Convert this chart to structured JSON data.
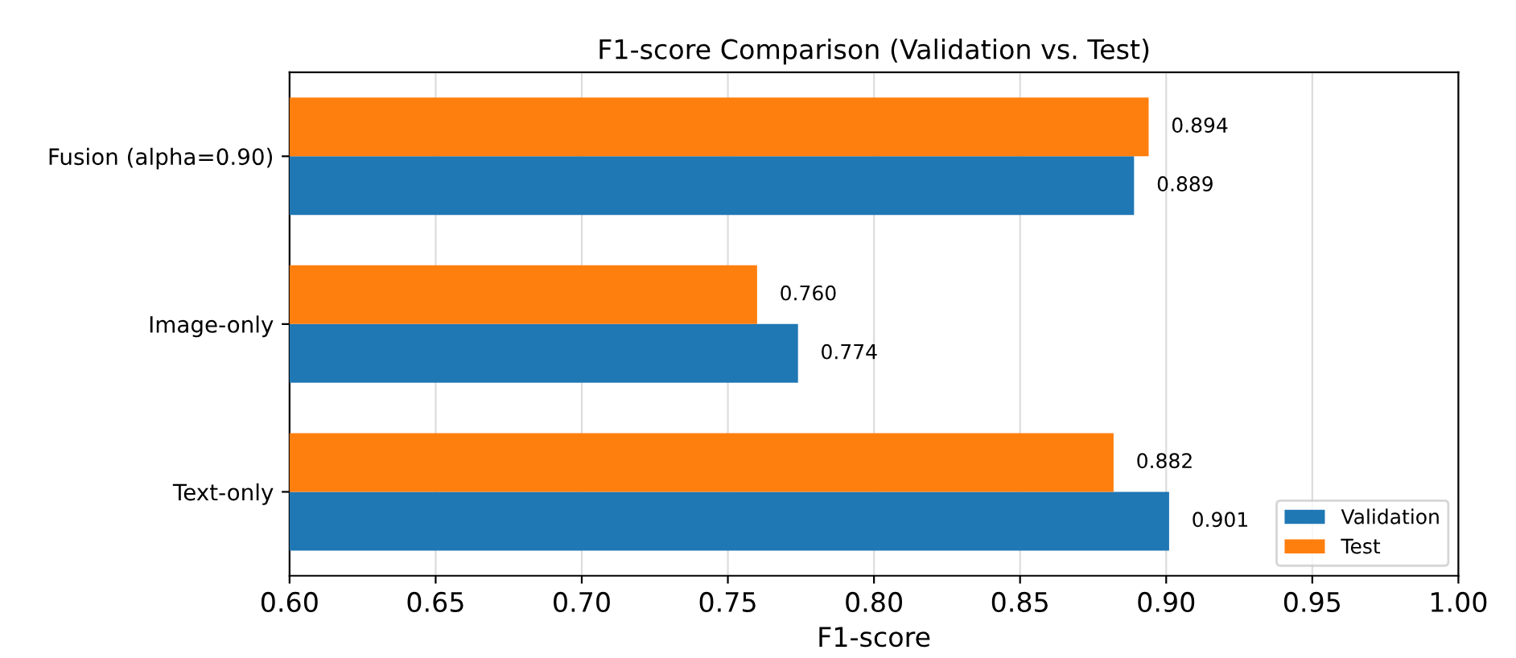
{
  "chart_data": {
    "type": "bar",
    "orientation": "horizontal",
    "title": "F1-score Comparison (Validation vs. Test)",
    "xlabel": "F1-score",
    "categories": [
      "Fusion (alpha=0.90)",
      "Image-only",
      "Text-only"
    ],
    "series": [
      {
        "name": "Validation",
        "color": "#1f77b4",
        "values": [
          0.889,
          0.774,
          0.901
        ],
        "value_labels": [
          "0.889",
          "0.774",
          "0.901"
        ]
      },
      {
        "name": "Test",
        "color": "#ff7f0e",
        "values": [
          0.894,
          0.76,
          0.882
        ],
        "value_labels": [
          "0.894",
          "0.760",
          "0.882"
        ]
      }
    ],
    "xlim": [
      0.6,
      1.0
    ],
    "xticks": [
      {
        "value": 0.6,
        "label": "0.60"
      },
      {
        "value": 0.65,
        "label": "0.65"
      },
      {
        "value": 0.7,
        "label": "0.70"
      },
      {
        "value": 0.75,
        "label": "0.75"
      },
      {
        "value": 0.8,
        "label": "0.80"
      },
      {
        "value": 0.85,
        "label": "0.85"
      },
      {
        "value": 0.9,
        "label": "0.90"
      },
      {
        "value": 0.95,
        "label": "0.95"
      },
      {
        "value": 1.0,
        "label": "1.00"
      }
    ],
    "grid": "x",
    "legend": "bottom right"
  }
}
